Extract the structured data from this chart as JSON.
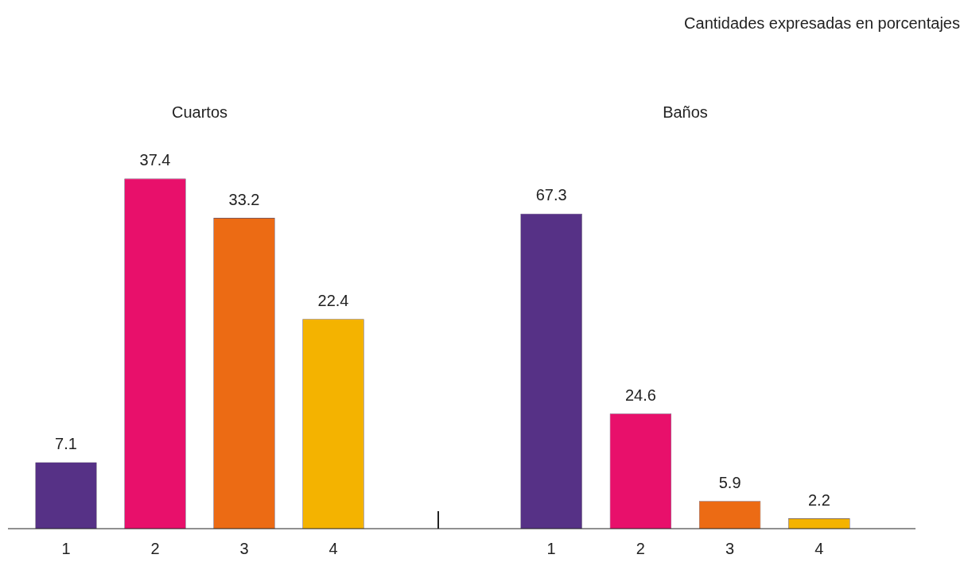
{
  "chart_data": [
    {
      "type": "bar",
      "title": "Cuartos",
      "categories": [
        "1",
        "2",
        "3",
        "4"
      ],
      "values": [
        7.1,
        37.4,
        33.2,
        22.4
      ],
      "colors": [
        "#563186",
        "#e8106b",
        "#ec6b14",
        "#f4b300"
      ],
      "data_labels": true,
      "legend": false,
      "grid": false,
      "tick_labels": "x",
      "annotations": [
        "Cantidades expresadas en porcentajes"
      ]
    },
    {
      "type": "bar",
      "title": "Baños",
      "categories": [
        "1",
        "2",
        "3",
        "4"
      ],
      "values": [
        67.3,
        24.6,
        5.9,
        2.2
      ],
      "colors": [
        "#563186",
        "#e8106b",
        "#ec6b14",
        "#f4b300"
      ],
      "data_labels": true,
      "legend": false,
      "grid": false,
      "tick_labels": "x"
    }
  ]
}
